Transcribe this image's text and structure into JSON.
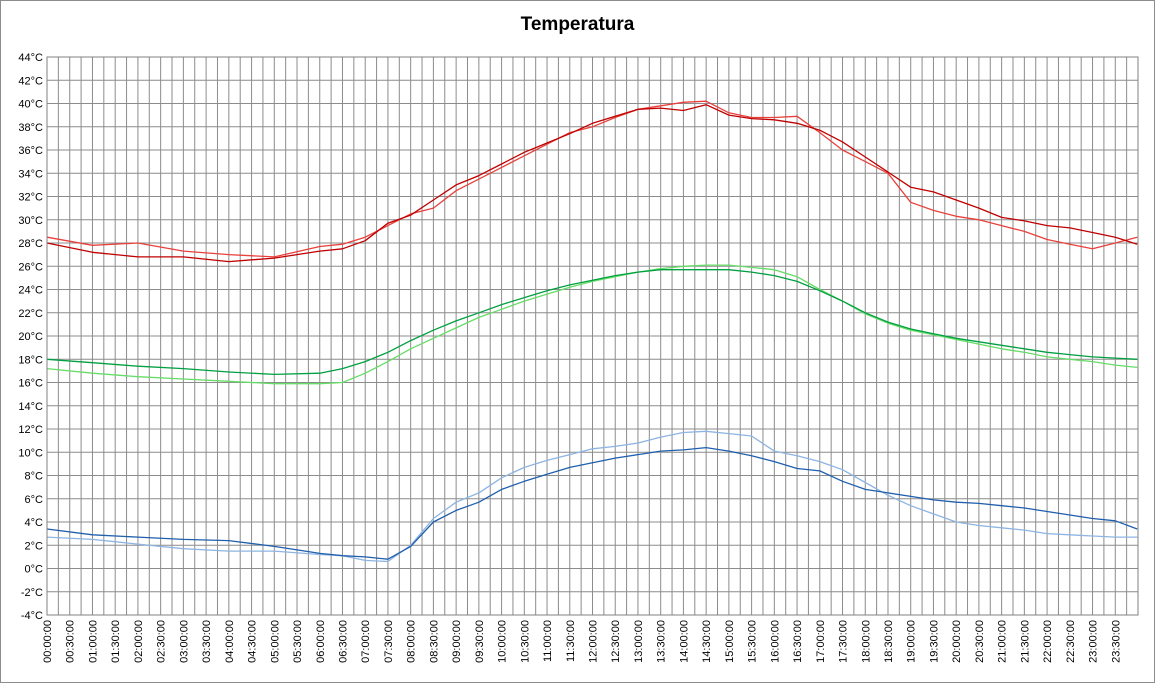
{
  "chart_data": {
    "type": "line",
    "title": "Temperatura",
    "xlabel": "",
    "ylabel": "",
    "ylim": [
      -4,
      44
    ],
    "y_ticks": [
      "44°C",
      "42°C",
      "40°C",
      "38°C",
      "36°C",
      "34°C",
      "32°C",
      "30°C",
      "28°C",
      "26°C",
      "24°C",
      "22°C",
      "20°C",
      "18°C",
      "16°C",
      "14°C",
      "12°C",
      "10°C",
      "8°C",
      "6°C",
      "4°C",
      "2°C",
      "0°C",
      "-2°C",
      "-4°C"
    ],
    "x_ticks": [
      "00:00:00",
      "00:30:00",
      "01:00:00",
      "01:30:00",
      "02:00:00",
      "02:30:00",
      "03:00:00",
      "03:30:00",
      "04:00:00",
      "04:30:00",
      "05:00:00",
      "05:30:00",
      "06:00:00",
      "06:30:00",
      "07:00:00",
      "07:30:00",
      "08:00:00",
      "08:30:00",
      "09:00:00",
      "09:30:00",
      "10:00:00",
      "10:30:00",
      "11:00:00",
      "11:30:00",
      "12:00:00",
      "12:30:00",
      "13:00:00",
      "13:30:00",
      "14:00:00",
      "14:30:00",
      "15:00:00",
      "15:30:00",
      "16:00:00",
      "16:30:00",
      "17:00:00",
      "17:30:00",
      "18:00:00",
      "18:30:00",
      "19:00:00",
      "19:30:00",
      "20:00:00",
      "20:30:00",
      "21:00:00",
      "21:30:00",
      "22:00:00",
      "22:30:00",
      "23:00:00",
      "23:30:00"
    ],
    "grid": true,
    "legend": "none",
    "series": [
      {
        "color": "#e8413c",
        "x": [
          "00:00:00",
          "01:00:00",
          "02:00:00",
          "03:00:00",
          "04:00:00",
          "05:00:00",
          "06:00:00",
          "06:30:00",
          "07:00:00",
          "07:30:00",
          "08:00:00",
          "08:30:00",
          "09:00:00",
          "09:30:00",
          "10:00:00",
          "10:30:00",
          "11:00:00",
          "11:30:00",
          "12:00:00",
          "12:30:00",
          "13:00:00",
          "13:30:00",
          "14:00:00",
          "14:30:00",
          "15:00:00",
          "15:30:00",
          "16:00:00",
          "16:30:00",
          "17:00:00",
          "17:30:00",
          "18:00:00",
          "18:30:00",
          "19:00:00",
          "19:30:00",
          "20:00:00",
          "20:30:00",
          "21:00:00",
          "21:30:00",
          "22:00:00",
          "22:30:00",
          "23:00:00",
          "23:30:00",
          "23:59:00"
        ],
        "values": [
          28.5,
          27.8,
          28.0,
          27.3,
          27.0,
          26.8,
          27.7,
          27.9,
          28.5,
          29.5,
          30.5,
          31.0,
          32.5,
          33.5,
          34.5,
          35.5,
          36.5,
          37.5,
          38.0,
          38.8,
          39.5,
          39.8,
          40.1,
          40.2,
          39.2,
          38.8,
          38.8,
          38.9,
          37.5,
          36.0,
          35.0,
          34.0,
          31.5,
          30.8,
          30.3,
          30.0,
          29.5,
          29.0,
          28.3,
          27.9,
          27.5,
          28.0,
          28.5
        ]
      },
      {
        "color": "#c00000",
        "x": [
          "00:00:00",
          "01:00:00",
          "02:00:00",
          "03:00:00",
          "04:00:00",
          "05:00:00",
          "06:00:00",
          "06:30:00",
          "07:00:00",
          "07:30:00",
          "08:00:00",
          "08:30:00",
          "09:00:00",
          "09:30:00",
          "10:00:00",
          "10:30:00",
          "11:00:00",
          "11:30:00",
          "12:00:00",
          "12:30:00",
          "13:00:00",
          "13:30:00",
          "14:00:00",
          "14:30:00",
          "15:00:00",
          "15:30:00",
          "16:00:00",
          "16:30:00",
          "17:00:00",
          "17:30:00",
          "18:00:00",
          "18:30:00",
          "19:00:00",
          "19:30:00",
          "20:00:00",
          "20:30:00",
          "21:00:00",
          "21:30:00",
          "22:00:00",
          "22:30:00",
          "23:00:00",
          "23:30:00",
          "23:59:00"
        ],
        "values": [
          28.0,
          27.2,
          26.8,
          26.8,
          26.4,
          26.7,
          27.3,
          27.5,
          28.2,
          29.7,
          30.4,
          31.7,
          33.0,
          33.8,
          34.8,
          35.8,
          36.6,
          37.4,
          38.3,
          38.9,
          39.5,
          39.6,
          39.4,
          39.9,
          39.0,
          38.7,
          38.6,
          38.3,
          37.7,
          36.7,
          35.4,
          34.1,
          32.8,
          32.4,
          31.7,
          31.0,
          30.2,
          29.9,
          29.5,
          29.3,
          28.9,
          28.5,
          27.9
        ]
      },
      {
        "color": "#66dd66",
        "x": [
          "00:00:00",
          "01:00:00",
          "02:00:00",
          "03:00:00",
          "04:00:00",
          "05:00:00",
          "06:00:00",
          "06:30:00",
          "07:00:00",
          "07:30:00",
          "08:00:00",
          "08:30:00",
          "09:00:00",
          "09:30:00",
          "10:00:00",
          "10:30:00",
          "11:00:00",
          "11:30:00",
          "12:00:00",
          "12:30:00",
          "13:00:00",
          "13:30:00",
          "14:00:00",
          "14:30:00",
          "15:00:00",
          "15:30:00",
          "16:00:00",
          "16:30:00",
          "17:00:00",
          "17:30:00",
          "18:00:00",
          "18:30:00",
          "19:00:00",
          "19:30:00",
          "20:00:00",
          "20:30:00",
          "21:00:00",
          "21:30:00",
          "22:00:00",
          "22:30:00",
          "23:00:00",
          "23:30:00",
          "23:59:00"
        ],
        "values": [
          17.2,
          16.8,
          16.5,
          16.3,
          16.1,
          15.9,
          15.9,
          16.0,
          16.8,
          17.8,
          18.9,
          19.8,
          20.7,
          21.6,
          22.3,
          23.0,
          23.6,
          24.2,
          24.7,
          25.1,
          25.5,
          25.8,
          26.0,
          26.1,
          26.1,
          25.9,
          25.7,
          25.1,
          24.0,
          23.0,
          21.9,
          21.1,
          20.5,
          20.1,
          19.7,
          19.3,
          18.9,
          18.6,
          18.2,
          18.0,
          17.8,
          17.5,
          17.3
        ]
      },
      {
        "color": "#00a040",
        "x": [
          "00:00:00",
          "01:00:00",
          "02:00:00",
          "03:00:00",
          "04:00:00",
          "05:00:00",
          "06:00:00",
          "06:30:00",
          "07:00:00",
          "07:30:00",
          "08:00:00",
          "08:30:00",
          "09:00:00",
          "09:30:00",
          "10:00:00",
          "10:30:00",
          "11:00:00",
          "11:30:00",
          "12:00:00",
          "12:30:00",
          "13:00:00",
          "13:30:00",
          "14:00:00",
          "14:30:00",
          "15:00:00",
          "15:30:00",
          "16:00:00",
          "16:30:00",
          "17:00:00",
          "17:30:00",
          "18:00:00",
          "18:30:00",
          "19:00:00",
          "19:30:00",
          "20:00:00",
          "20:30:00",
          "21:00:00",
          "21:30:00",
          "22:00:00",
          "22:30:00",
          "23:00:00",
          "23:30:00",
          "23:59:00"
        ],
        "values": [
          18.0,
          17.7,
          17.4,
          17.2,
          16.9,
          16.7,
          16.8,
          17.2,
          17.8,
          18.6,
          19.6,
          20.5,
          21.3,
          22.0,
          22.7,
          23.3,
          23.9,
          24.4,
          24.8,
          25.2,
          25.5,
          25.7,
          25.7,
          25.7,
          25.7,
          25.5,
          25.2,
          24.7,
          23.9,
          23.0,
          22.0,
          21.2,
          20.6,
          20.2,
          19.8,
          19.5,
          19.2,
          18.9,
          18.6,
          18.4,
          18.2,
          18.1,
          18.0
        ]
      },
      {
        "color": "#8db4e2",
        "x": [
          "00:00:00",
          "01:00:00",
          "02:00:00",
          "03:00:00",
          "04:00:00",
          "05:00:00",
          "06:00:00",
          "06:30:00",
          "07:00:00",
          "07:30:00",
          "08:00:00",
          "08:30:00",
          "09:00:00",
          "09:30:00",
          "10:00:00",
          "10:30:00",
          "11:00:00",
          "11:30:00",
          "12:00:00",
          "12:30:00",
          "13:00:00",
          "13:30:00",
          "14:00:00",
          "14:30:00",
          "15:00:00",
          "15:30:00",
          "16:00:00",
          "16:30:00",
          "17:00:00",
          "17:30:00",
          "18:00:00",
          "18:30:00",
          "19:00:00",
          "19:30:00",
          "20:00:00",
          "20:30:00",
          "21:00:00",
          "21:30:00",
          "22:00:00",
          "22:30:00",
          "23:00:00",
          "23:30:00",
          "23:59:00"
        ],
        "values": [
          2.7,
          2.5,
          2.1,
          1.7,
          1.5,
          1.5,
          1.2,
          1.1,
          0.7,
          0.6,
          2.0,
          4.3,
          5.7,
          6.5,
          7.8,
          8.7,
          9.3,
          9.8,
          10.3,
          10.5,
          10.8,
          11.3,
          11.7,
          11.8,
          11.6,
          11.4,
          10.1,
          9.7,
          9.2,
          8.5,
          7.4,
          6.3,
          5.4,
          4.7,
          4.0,
          3.7,
          3.5,
          3.3,
          3.0,
          2.9,
          2.8,
          2.7,
          2.7
        ]
      },
      {
        "color": "#1f5fad",
        "x": [
          "00:00:00",
          "01:00:00",
          "02:00:00",
          "03:00:00",
          "04:00:00",
          "05:00:00",
          "06:00:00",
          "06:30:00",
          "07:00:00",
          "07:30:00",
          "08:00:00",
          "08:30:00",
          "09:00:00",
          "09:30:00",
          "10:00:00",
          "10:30:00",
          "11:00:00",
          "11:30:00",
          "12:00:00",
          "12:30:00",
          "13:00:00",
          "13:30:00",
          "14:00:00",
          "14:30:00",
          "15:00:00",
          "15:30:00",
          "16:00:00",
          "16:30:00",
          "17:00:00",
          "17:30:00",
          "18:00:00",
          "18:30:00",
          "19:00:00",
          "19:30:00",
          "20:00:00",
          "20:30:00",
          "21:00:00",
          "21:30:00",
          "22:00:00",
          "22:30:00",
          "23:00:00",
          "23:30:00",
          "23:59:00"
        ],
        "values": [
          3.4,
          2.9,
          2.7,
          2.5,
          2.4,
          1.9,
          1.3,
          1.1,
          1.0,
          0.8,
          1.9,
          4.0,
          5.0,
          5.7,
          6.8,
          7.5,
          8.1,
          8.7,
          9.1,
          9.5,
          9.8,
          10.1,
          10.2,
          10.4,
          10.1,
          9.7,
          9.2,
          8.6,
          8.4,
          7.5,
          6.8,
          6.5,
          6.2,
          5.9,
          5.7,
          5.6,
          5.4,
          5.2,
          4.9,
          4.6,
          4.3,
          4.1,
          3.4
        ]
      }
    ]
  }
}
